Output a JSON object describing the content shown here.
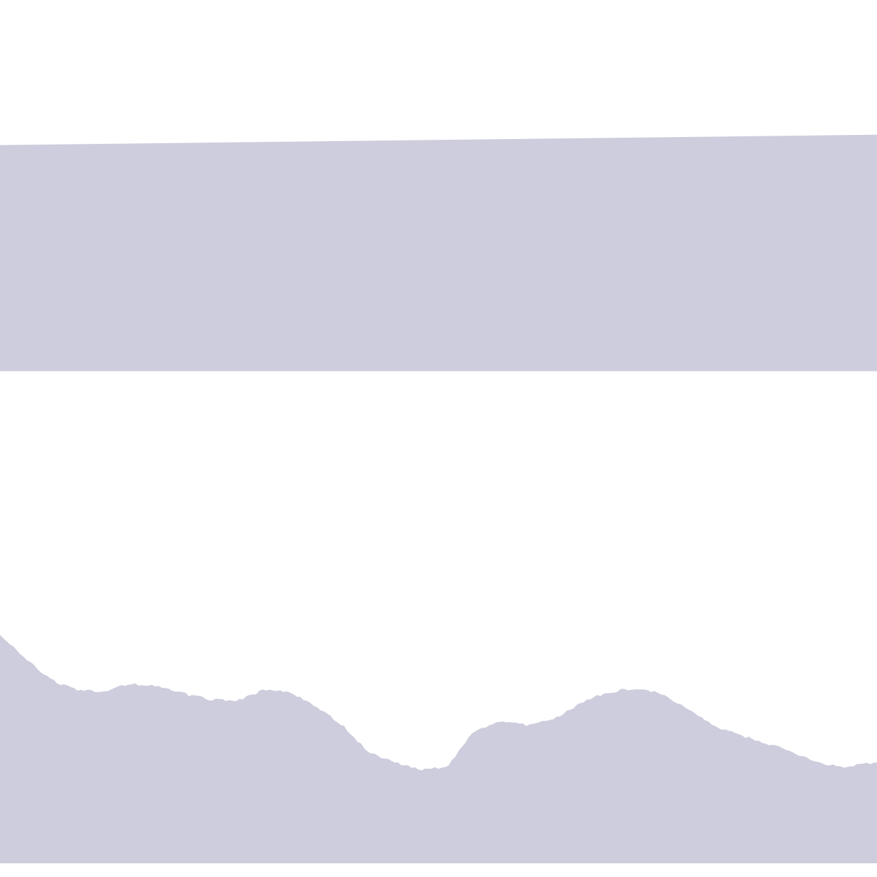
{
  "chart_data": {
    "type": "area",
    "title": "",
    "xlabel": "",
    "ylabel": "",
    "grid": false,
    "legend": "none",
    "colors": {
      "background": "#ffffff",
      "fill": "#cdcddd",
      "gap": "#ffffff"
    },
    "xlim": [
      0,
      100
    ],
    "ylim": [
      0,
      100
    ],
    "series": [
      {
        "role": "upper-band",
        "x": [
          0,
          100
        ],
        "lower": [
          57,
          57
        ],
        "upper": [
          83.2,
          84.4
        ]
      },
      {
        "role": "lower-band",
        "x": [
          0,
          3,
          6,
          9,
          12,
          15,
          18,
          21,
          24,
          27,
          30,
          33,
          36,
          39,
          42,
          45,
          48,
          51,
          54,
          57,
          60,
          63,
          66,
          69,
          72,
          75,
          78,
          81,
          84,
          87,
          90,
          93,
          96,
          100
        ],
        "upper": [
          26.7,
          23.8,
          21.3,
          20.2,
          20.1,
          21.0,
          20.6,
          19.8,
          19.1,
          19.0,
          20.2,
          20.0,
          18.4,
          16.2,
          13.0,
          11.8,
          11.0,
          11.3,
          15.5,
          16.5,
          16.2,
          16.7,
          18.6,
          19.9,
          20.4,
          19.9,
          18.3,
          16.3,
          15.1,
          14.2,
          13.2,
          11.9,
          11.3,
          11.9
        ],
        "lower": [
          0,
          0,
          0,
          0,
          0,
          0,
          0,
          0,
          0,
          0,
          0,
          0,
          0,
          0,
          0,
          0,
          0,
          0,
          0,
          0,
          0,
          0,
          0,
          0,
          0,
          0,
          0,
          0,
          0,
          0,
          0,
          0,
          0,
          0
        ]
      }
    ]
  }
}
